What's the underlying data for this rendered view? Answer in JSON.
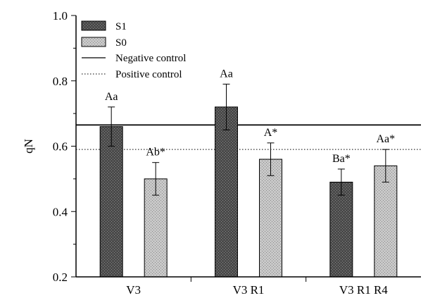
{
  "chart_data": {
    "type": "bar",
    "ylabel": "qN",
    "xlabel": "",
    "ylim": [
      0.2,
      1.0
    ],
    "yticks": [
      "0.2",
      "0.4",
      "0.6",
      "0.8",
      "1.0"
    ],
    "categories": [
      "V3",
      "V3 R1",
      "V3 R1 R4"
    ],
    "series": [
      {
        "name": "S1",
        "color": "#4a4a4a",
        "values": [
          0.66,
          0.72,
          0.49
        ],
        "errors": [
          0.06,
          0.07,
          0.04
        ],
        "labels": [
          "Aa",
          "Aa",
          "Ba*"
        ]
      },
      {
        "name": "S0",
        "color": "#c8c8c8",
        "values": [
          0.5,
          0.56,
          0.54
        ],
        "errors": [
          0.05,
          0.05,
          0.05
        ],
        "labels": [
          "Ab*",
          "A*",
          "Aa*"
        ]
      }
    ],
    "reference_lines": [
      {
        "name": "Negative control",
        "value": 0.665,
        "style": "solid"
      },
      {
        "name": "Positive control",
        "value": 0.59,
        "style": "dotted"
      }
    ],
    "legend_position": "top-left"
  }
}
